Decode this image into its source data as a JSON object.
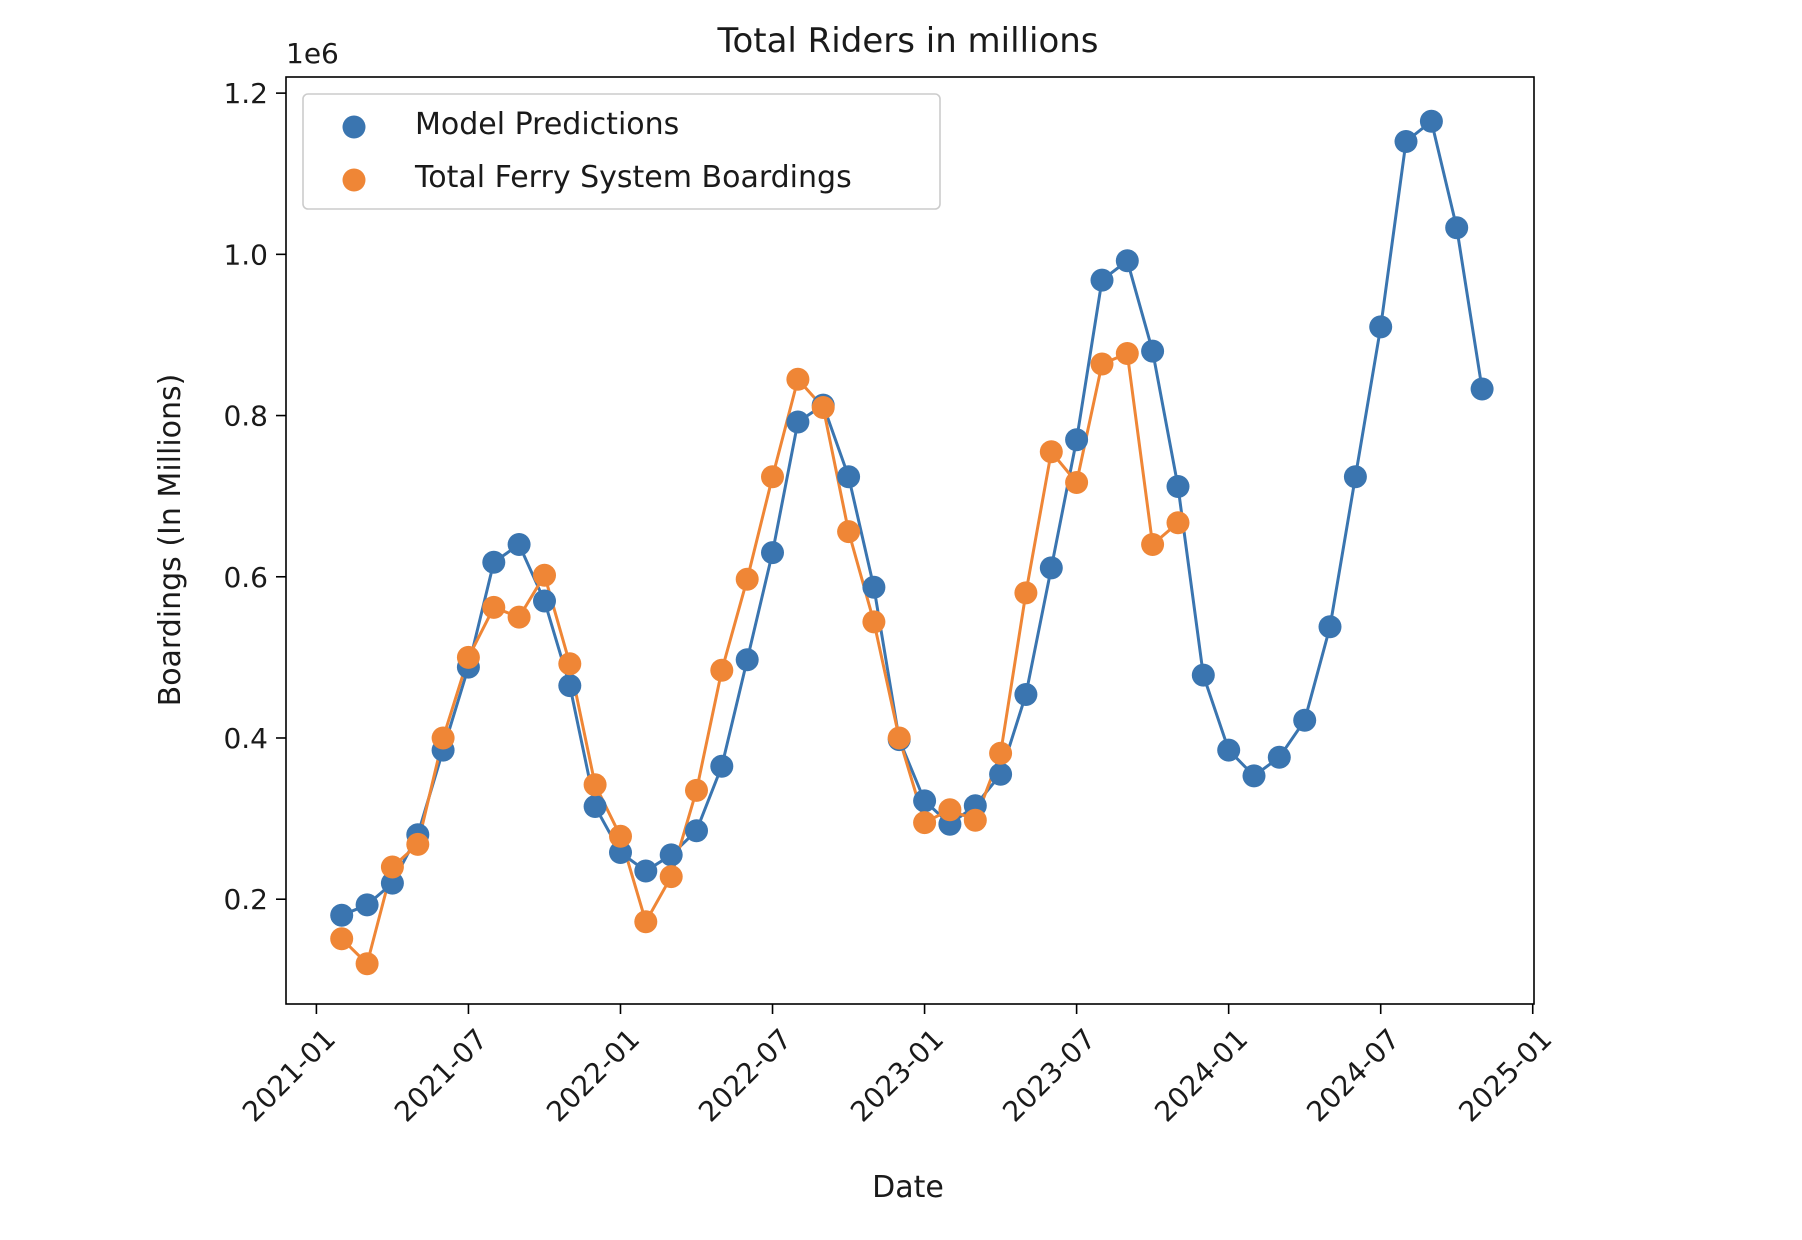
{
  "chart_data": {
    "type": "line",
    "title": "Total Riders in millions",
    "xlabel": "Date",
    "ylabel": "Boardings (In Millions)",
    "y_offset_label": "1e6",
    "x_ticks": [
      "2021-01",
      "2021-07",
      "2022-01",
      "2022-07",
      "2023-01",
      "2023-07",
      "2024-01",
      "2024-07",
      "2025-01"
    ],
    "y_ticks": [
      "0.2",
      "0.4",
      "0.6",
      "0.8",
      "1.0",
      "1.2"
    ],
    "xlim": [
      "2020-12",
      "2025-01"
    ],
    "ylim": [
      70000,
      1220000
    ],
    "grid": false,
    "legend_position": "upper-left",
    "series": [
      {
        "name": "Model Predictions",
        "color": "#3a75b0",
        "x": [
          "2021-02",
          "2021-03",
          "2021-04",
          "2021-05",
          "2021-06",
          "2021-07",
          "2021-08",
          "2021-09",
          "2021-10",
          "2021-11",
          "2021-12",
          "2022-01",
          "2022-02",
          "2022-03",
          "2022-04",
          "2022-05",
          "2022-06",
          "2022-07",
          "2022-08",
          "2022-09",
          "2022-10",
          "2022-11",
          "2022-12",
          "2023-01",
          "2023-02",
          "2023-03",
          "2023-04",
          "2023-05",
          "2023-06",
          "2023-07",
          "2023-08",
          "2023-09",
          "2023-10",
          "2023-11",
          "2023-12",
          "2024-01",
          "2024-02",
          "2024-03",
          "2024-04",
          "2024-05",
          "2024-06",
          "2024-07",
          "2024-08",
          "2024-09",
          "2024-10",
          "2024-11"
        ],
        "values": [
          180000,
          193000,
          220000,
          280000,
          385000,
          488000,
          618000,
          640000,
          570000,
          465000,
          315000,
          258000,
          235000,
          255000,
          285000,
          365000,
          497000,
          630000,
          792000,
          813000,
          724000,
          587000,
          398000,
          322000,
          293000,
          316000,
          355000,
          454000,
          611000,
          770000,
          968000,
          992000,
          880000,
          712000,
          478000,
          385000,
          353000,
          376000,
          422000,
          538000,
          724000,
          910000,
          1140000,
          1165000,
          1033000,
          833000
        ]
      },
      {
        "name": "Total Ferry System Boardings",
        "color": "#ef8636",
        "x": [
          "2021-02",
          "2021-03",
          "2021-04",
          "2021-05",
          "2021-06",
          "2021-07",
          "2021-08",
          "2021-09",
          "2021-10",
          "2021-11",
          "2021-12",
          "2022-01",
          "2022-02",
          "2022-03",
          "2022-04",
          "2022-05",
          "2022-06",
          "2022-07",
          "2022-08",
          "2022-09",
          "2022-10",
          "2022-11",
          "2022-12",
          "2023-01",
          "2023-02",
          "2023-03",
          "2023-04",
          "2023-05",
          "2023-06",
          "2023-07",
          "2023-08",
          "2023-09",
          "2023-10",
          "2023-11"
        ],
        "values": [
          151000,
          120000,
          240000,
          268000,
          400000,
          500000,
          562000,
          550000,
          602000,
          492000,
          342000,
          278000,
          172000,
          228000,
          335000,
          484000,
          597000,
          724000,
          845000,
          810000,
          656000,
          544000,
          400000,
          295000,
          311000,
          298000,
          381000,
          580000,
          755000,
          717000,
          864000,
          877000,
          640000,
          667000
        ]
      }
    ]
  }
}
